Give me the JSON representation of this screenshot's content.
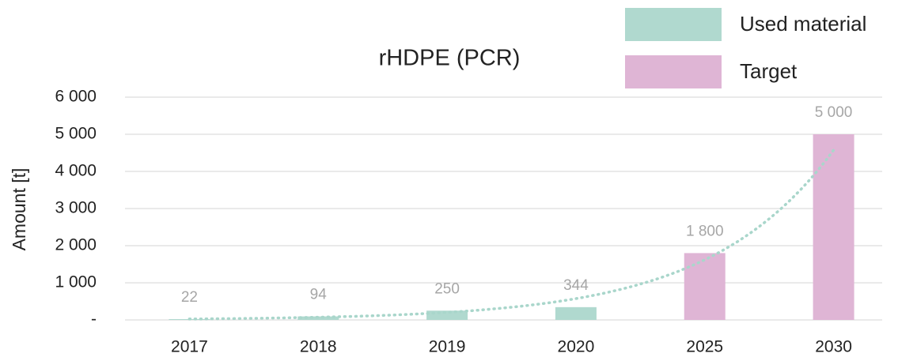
{
  "chart_data": {
    "type": "bar",
    "title": "rHDPE (PCR)",
    "y_label": "Amount [t]",
    "categories": [
      "2017",
      "2018",
      "2019",
      "2020",
      "2025",
      "2030"
    ],
    "series": [
      {
        "name": "Used material",
        "color": "#b0d9cf",
        "values": [
          22,
          94,
          250,
          344,
          null,
          null
        ]
      },
      {
        "name": "Target",
        "color": "#dfb5d5",
        "values": [
          null,
          null,
          null,
          null,
          1800,
          5000
        ],
        "value_labels": [
          null,
          null,
          null,
          null,
          "1 800",
          "5 000"
        ]
      }
    ],
    "ylim": [
      0,
      6000
    ],
    "yticks": [
      {
        "value": 0,
        "label": "-"
      },
      {
        "value": 1000,
        "label": "1 000"
      },
      {
        "value": 2000,
        "label": "2 000"
      },
      {
        "value": 3000,
        "label": "3 000"
      },
      {
        "value": 4000,
        "label": "4 000"
      },
      {
        "value": 5000,
        "label": "5 000"
      },
      {
        "value": 6000,
        "label": "6 000"
      }
    ],
    "grid": true,
    "legend": "top-right",
    "trendline": {
      "type": "exponential",
      "color": "#a9d6cb"
    }
  }
}
